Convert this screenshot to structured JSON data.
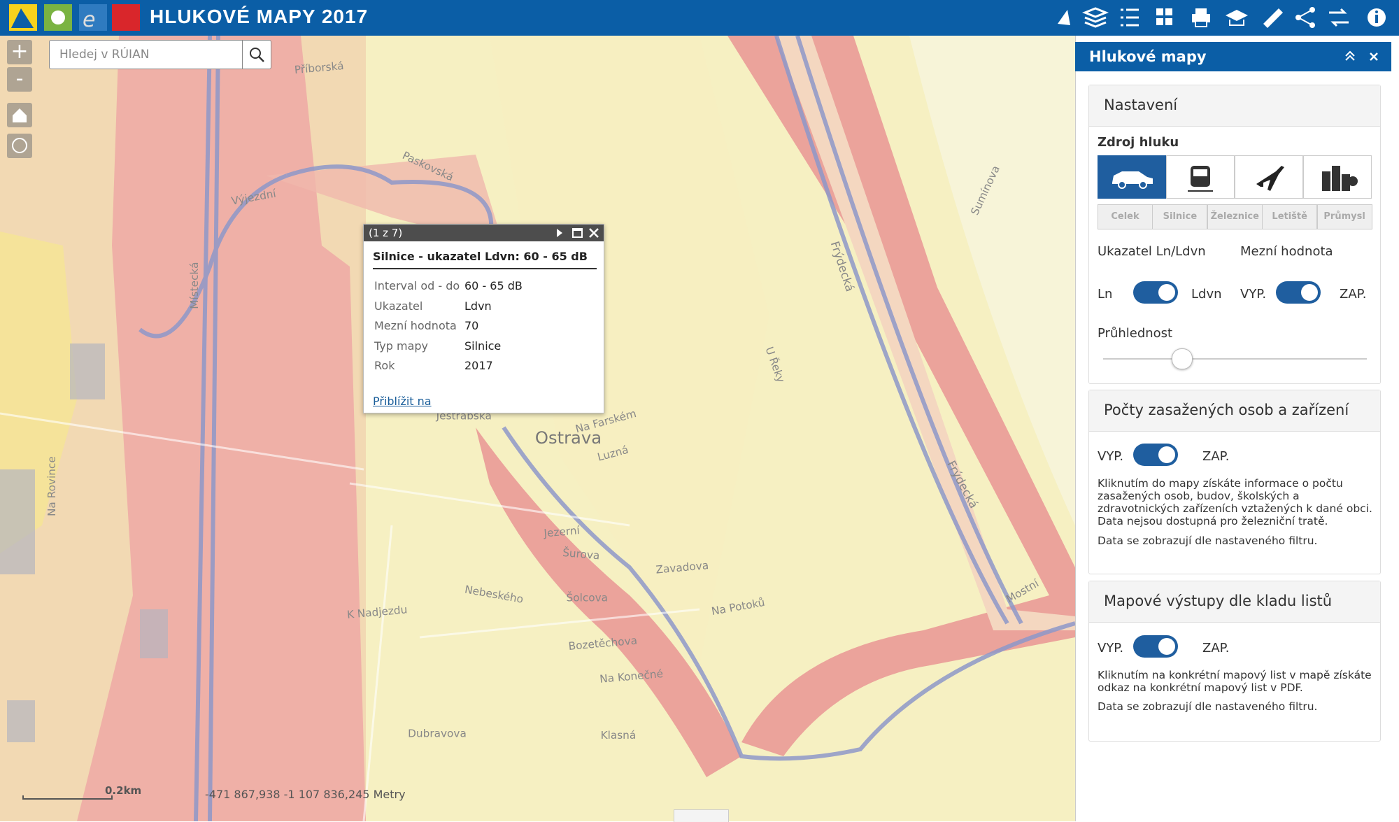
{
  "header": {
    "title": "HLUKOVÉ MAPY 2017"
  },
  "search": {
    "placeholder": "Hledej v RÚIAN"
  },
  "popup": {
    "counter": "(1 z 7)",
    "title": "Silnice - ukazatel Ldvn: 60 - 65 dB",
    "rows": [
      [
        "Interval od - do",
        "60 - 65 dB"
      ],
      [
        "Ukazatel",
        "Ldvn"
      ],
      [
        "Mezní hodnota",
        "70"
      ],
      [
        "Typ mapy",
        "Silnice"
      ],
      [
        "Rok",
        "2017"
      ]
    ],
    "link": "Přiblížit na"
  },
  "panel": {
    "title": "Hlukové mapy",
    "settings": {
      "title": "Nastavení",
      "source_label": "Zdroj hluku",
      "tabs": [
        "Celek",
        "Silnice",
        "Železnice",
        "Letiště",
        "Průmysl"
      ],
      "indicator_label": "Ukazatel Ln/Ldvn",
      "threshold_label": "Mezní hodnota",
      "ln": "Ln",
      "ldvn": "Ldvn",
      "off": "VYP.",
      "on": "ZAP.",
      "transparency": "Průhlednost"
    },
    "affected": {
      "title": "Počty zasažených osob a zařízení",
      "off": "VYP.",
      "on": "ZAP.",
      "text": "Kliknutím do mapy získáte informace o počtu zasažených osob, budov, školských a zdravotnických zařízeních vztažených k dané obci. Data nejsou dostupná pro železniční tratě.",
      "note": "Data se zobrazují dle nastaveného filtru."
    },
    "sheets": {
      "title": "Mapové výstupy dle kladu listů",
      "off": "VYP.",
      "on": "ZAP.",
      "text": "Kliknutím na konkrétní mapový list v mapě získáte odkaz na konkrétní mapový list v PDF.",
      "note": "Data se zobrazují dle nastaveného filtru."
    }
  },
  "status": {
    "scale": "0.2km",
    "coords": "-471 867,938  -1 107 836,245 Metry"
  },
  "map_labels": [
    "Ostrava",
    "Frýdecká",
    "Frýdecká",
    "Místecká",
    "Paskovská",
    "Jestřábská",
    "Na Rovince",
    "K Nadjezdu",
    "Nebeského",
    "Šolcova",
    "Šurova",
    "Jezerní",
    "Zavadova",
    "Bozetěchova",
    "Na Konečné",
    "Dubravova",
    "Klasná",
    "Mostní",
    "Na Potoků",
    "Luzná",
    "Na Farském",
    "U Řeky",
    "Sumínova",
    "Příborská",
    "Výjezdní"
  ]
}
